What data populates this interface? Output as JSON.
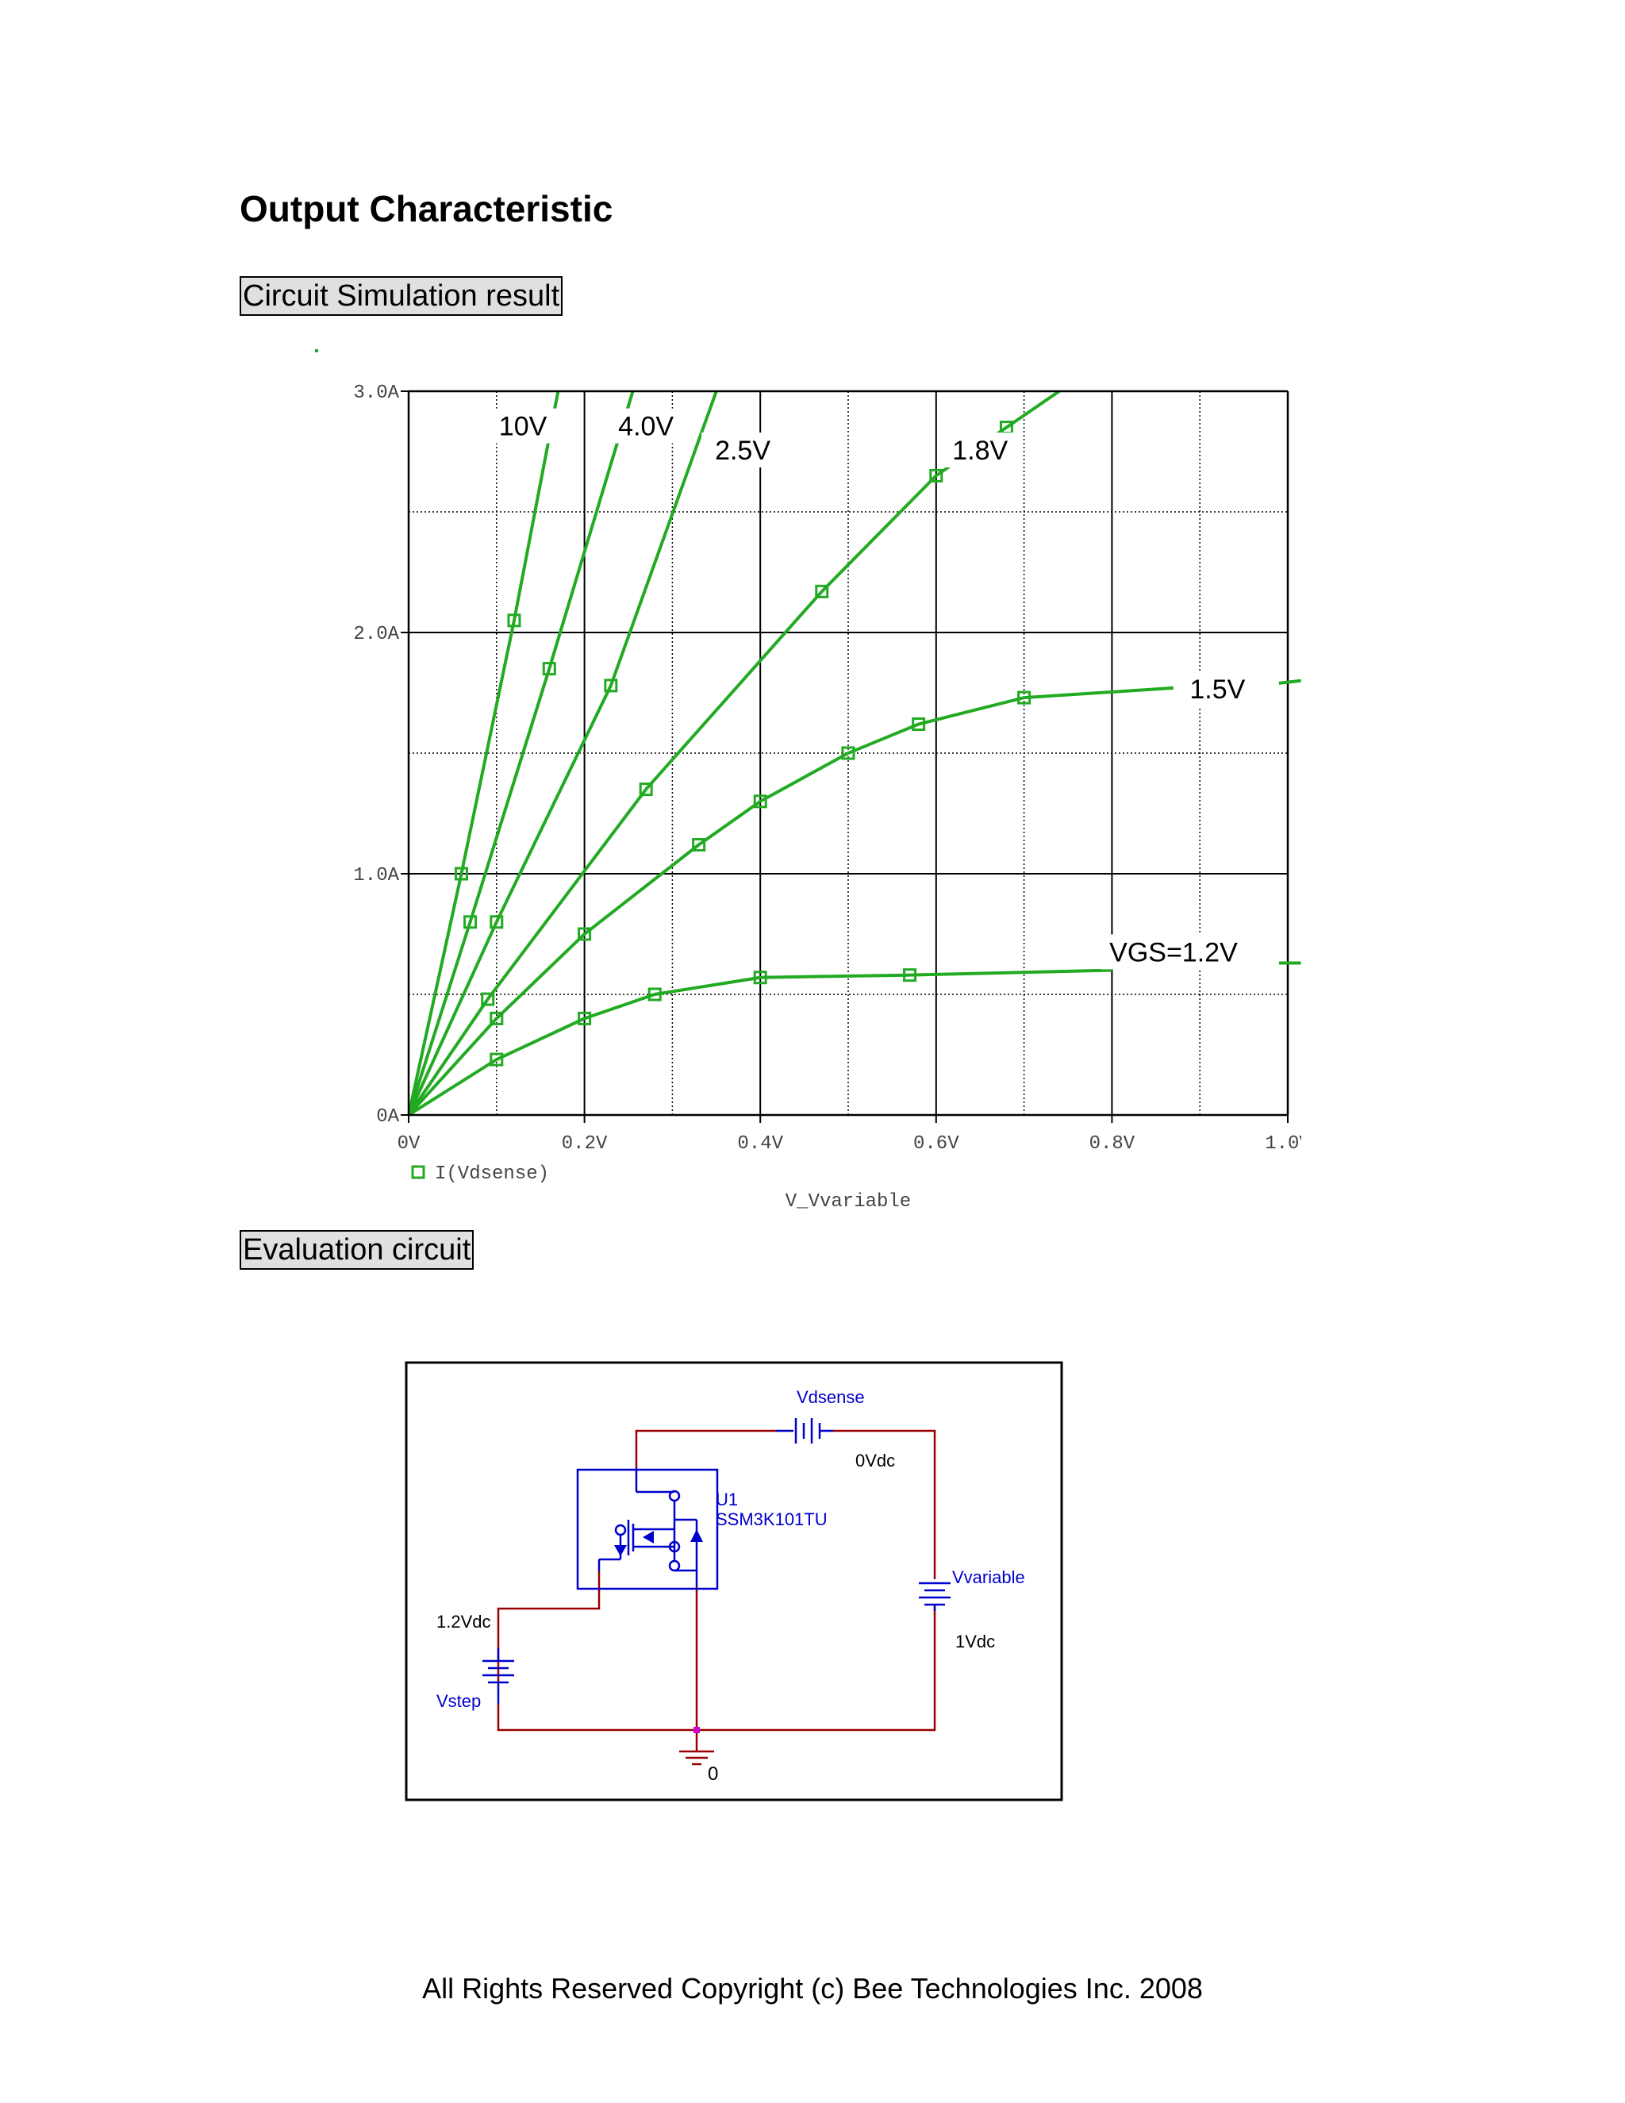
{
  "page": {
    "title": "Output Characteristic",
    "section_simulation": "Circuit Simulation result",
    "section_circuit": "Evaluation circuit",
    "footer": "All Rights Reserved Copyright (c) Bee Technologies Inc. 2008"
  },
  "colors": {
    "curve": "#22aa22",
    "schematic_blue": "#0000cc",
    "wire_red": "#990000"
  },
  "chart_data": {
    "type": "line",
    "xlabel": "V_Vvariable",
    "ylabel": "",
    "legend": "I(Vdsense)",
    "legend_position": "bottom-left",
    "xlim": [
      0,
      1.0
    ],
    "ylim": [
      0,
      3.0
    ],
    "x_ticks": [
      "0V",
      "0.2V",
      "0.4V",
      "0.6V",
      "0.8V",
      "1.0V"
    ],
    "y_ticks": [
      "0A",
      "1.0A",
      "2.0A",
      "3.0A"
    ],
    "grid": true,
    "series": [
      {
        "name": "10V",
        "x": [
          0,
          0.06,
          0.12,
          0.17
        ],
        "y": [
          0,
          1.0,
          2.05,
          3.0
        ]
      },
      {
        "name": "4.0V",
        "x": [
          0,
          0.07,
          0.16,
          0.255
        ],
        "y": [
          0,
          0.8,
          1.85,
          3.0
        ]
      },
      {
        "name": "2.5V",
        "x": [
          0,
          0.1,
          0.23,
          0.35
        ],
        "y": [
          0,
          0.8,
          1.78,
          3.0
        ]
      },
      {
        "name": "1.8V",
        "x": [
          0,
          0.09,
          0.27,
          0.47,
          0.6,
          0.68,
          0.74
        ],
        "y": [
          0,
          0.48,
          1.35,
          2.17,
          2.65,
          2.85,
          3.0
        ]
      },
      {
        "name": "1.5V",
        "x": [
          0,
          0.1,
          0.2,
          0.33,
          0.4,
          0.5,
          0.58,
          0.7,
          0.87
        ],
        "y": [
          0,
          0.4,
          0.75,
          1.12,
          1.3,
          1.5,
          1.62,
          1.73,
          1.77
        ]
      },
      {
        "name": "VGS=1.2V",
        "x": [
          0,
          0.1,
          0.2,
          0.28,
          0.4,
          0.57,
          0.8
        ],
        "y": [
          0,
          0.23,
          0.4,
          0.5,
          0.57,
          0.58,
          0.6
        ]
      }
    ],
    "annotations": [
      "10V",
      "4.0V",
      "2.5V",
      "1.8V",
      "1.5V",
      "VGS=1.2V"
    ]
  },
  "circuit": {
    "vdsense_name": "Vdsense",
    "vdsense_value": "0Vdc",
    "part_ref": "U1",
    "part_name": "SSM3K101TU",
    "vvariable_name": "Vvariable",
    "vvariable_value": "1Vdc",
    "vstep_value": "1.2Vdc",
    "vstep_name": "Vstep",
    "ground_label": "0"
  }
}
